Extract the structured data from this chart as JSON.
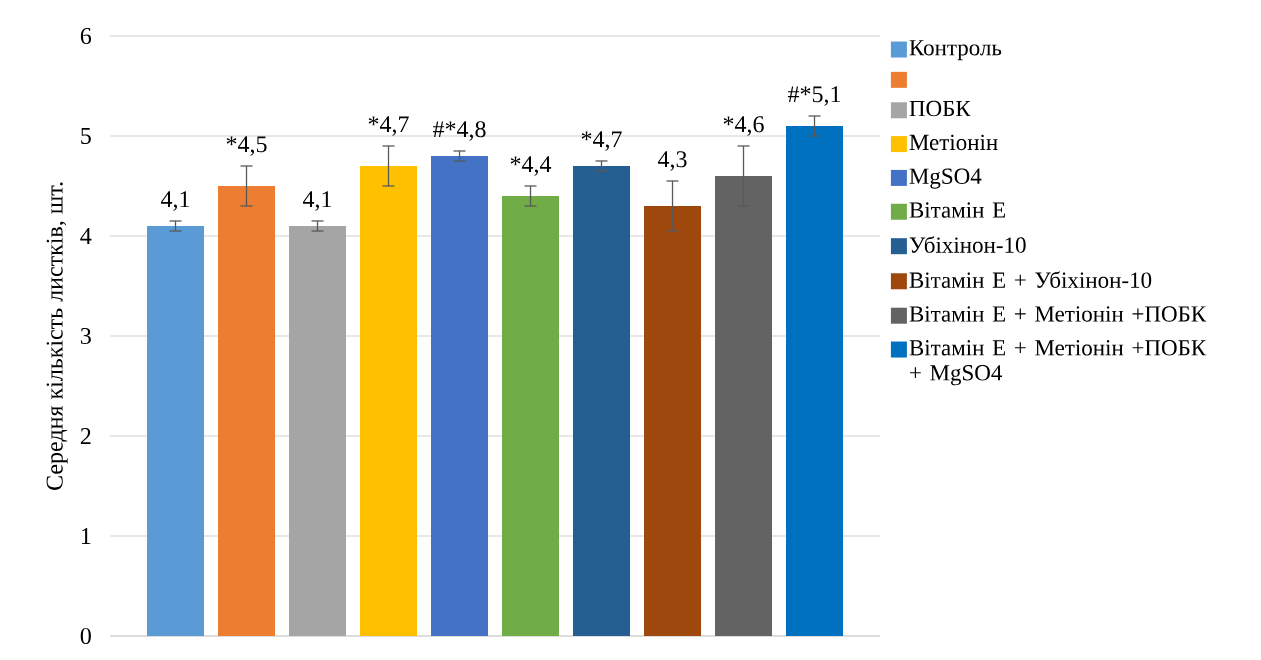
{
  "chart_data": {
    "type": "bar",
    "ylabel": "Середня кількість листків, шт.",
    "categories": [
      null
    ],
    "ylim": [
      0,
      6
    ],
    "yticks": [
      0,
      1,
      2,
      3,
      4,
      5,
      6
    ],
    "grid": "y",
    "legend": "right",
    "tick_labels": "y",
    "series": [
      {
        "name": "Контроль",
        "color": "#5b9bd5",
        "values": [
          4.1
        ],
        "errors": [
          0.05
        ],
        "value_labels": [
          "4,1"
        ]
      },
      {
        "color": "#ed7d31",
        "values": [
          4.5
        ],
        "errors": [
          0.2
        ],
        "value_labels": [
          "*4,5"
        ]
      },
      {
        "name": "ПОБК",
        "color": "#a5a5a5",
        "values": [
          4.1
        ],
        "errors": [
          0.05
        ],
        "value_labels": [
          "4,1"
        ]
      },
      {
        "name": "Метіонін",
        "color": "#ffc000",
        "values": [
          4.7
        ],
        "errors": [
          0.2
        ],
        "value_labels": [
          "*4,7"
        ]
      },
      {
        "name": "MgSO4",
        "color": "#4472c4",
        "values": [
          4.8
        ],
        "errors": [
          0.05
        ],
        "value_labels": [
          "#*4,8"
        ]
      },
      {
        "name": "Вітамін Е",
        "color": "#70ad47",
        "values": [
          4.4
        ],
        "errors": [
          0.1
        ],
        "value_labels": [
          "*4,4"
        ]
      },
      {
        "name": "Убіхінон-10",
        "color": "#255e91",
        "values": [
          4.7
        ],
        "errors": [
          0.05
        ],
        "value_labels": [
          "*4,7"
        ]
      },
      {
        "name": "Вітамін Е + Убіхінон-10",
        "color": "#9e480e",
        "values": [
          4.3
        ],
        "errors": [
          0.25
        ],
        "value_labels": [
          "4,3"
        ]
      },
      {
        "name": "Вітамін Е + Метіонін +ПОБК",
        "color": "#636363",
        "values": [
          4.6
        ],
        "errors": [
          0.3
        ],
        "value_labels": [
          "*4,6"
        ]
      },
      {
        "name": "Вітамін Е + Метіонін +ПОБК + MgSO4",
        "color": "#0070c0",
        "values": [
          5.1
        ],
        "errors": [
          0.1
        ],
        "value_labels": [
          "#*5,1"
        ]
      }
    ]
  }
}
